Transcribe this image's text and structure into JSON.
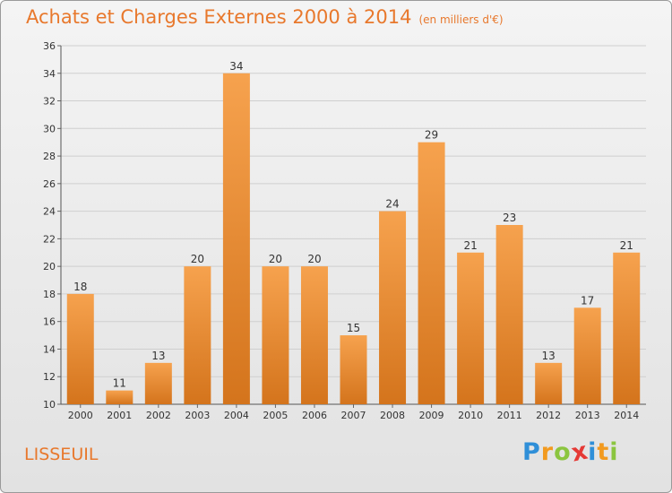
{
  "title": "Achats et Charges Externes 2000 à 2014",
  "unit": "(en milliers d'€)",
  "commune": "LISSEUIL",
  "logo": {
    "letters": [
      "P",
      "r",
      "o",
      "x",
      "i",
      "t",
      "i"
    ],
    "colors": [
      "#2f8fd8",
      "#f29a1f",
      "#8bc53f",
      "#e53935",
      "#2f8fd8",
      "#f29a1f",
      "#8bc53f"
    ]
  },
  "colors": {
    "bar_top": "#f6a24e",
    "bar_bottom": "#d4741c",
    "accent": "#e8782c"
  },
  "chart_data": {
    "type": "bar",
    "categories": [
      "2000",
      "2001",
      "2002",
      "2003",
      "2004",
      "2005",
      "2006",
      "2007",
      "2008",
      "2009",
      "2010",
      "2011",
      "2012",
      "2013",
      "2014"
    ],
    "values": [
      18,
      11,
      13,
      20,
      34,
      20,
      20,
      15,
      24,
      29,
      21,
      23,
      13,
      17,
      21
    ],
    "ylim": [
      10,
      36
    ],
    "yticks": [
      10,
      12,
      14,
      16,
      18,
      20,
      22,
      24,
      26,
      28,
      30,
      32,
      34,
      36
    ],
    "grid": true
  }
}
